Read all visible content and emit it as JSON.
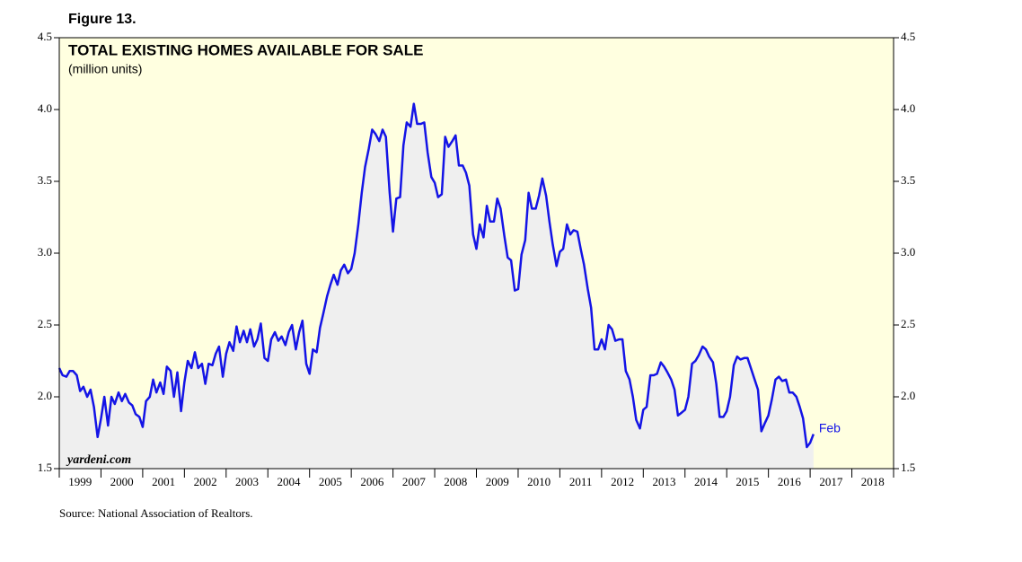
{
  "chart_data": {
    "type": "line",
    "figure_label": "Figure 13.",
    "title": "TOTAL EXISTING HOMES AVAILABLE FOR SALE",
    "subtitle": "(million units)",
    "watermark": "yardeni.com",
    "source": "Source: National Association of Realtors.",
    "annotation": "Feb",
    "categories": [
      "1999",
      "2000",
      "2001",
      "2002",
      "2003",
      "2004",
      "2005",
      "2006",
      "2007",
      "2008",
      "2009",
      "2010",
      "2011",
      "2012",
      "2013",
      "2014",
      "2015",
      "2016",
      "2017",
      "2018"
    ],
    "xlim": [
      1999,
      2019
    ],
    "xticks": [
      1999,
      2000,
      2001,
      2002,
      2003,
      2004,
      2005,
      2006,
      2007,
      2008,
      2009,
      2010,
      2011,
      2012,
      2013,
      2014,
      2015,
      2016,
      2017,
      2018,
      2019
    ],
    "ylim": [
      1.5,
      4.5
    ],
    "yticks": [
      1.5,
      {
        "value": 2,
        "label": "2.0"
      },
      2.5,
      {
        "value": 3,
        "label": "3.0"
      },
      3.5,
      {
        "value": 4,
        "label": "4.0"
      },
      4.5
    ],
    "background": "#ffffe0",
    "area_color": "#efefef",
    "x": [
      1999,
      1999.08,
      1999.17,
      1999.25,
      1999.33,
      1999.42,
      1999.5,
      1999.58,
      1999.67,
      1999.75,
      1999.83,
      1999.92,
      2000,
      2000.08,
      2000.17,
      2000.25,
      2000.33,
      2000.42,
      2000.5,
      2000.58,
      2000.67,
      2000.75,
      2000.83,
      2000.92,
      2001,
      2001.08,
      2001.17,
      2001.25,
      2001.33,
      2001.42,
      2001.5,
      2001.58,
      2001.67,
      2001.75,
      2001.83,
      2001.92,
      2002,
      2002.08,
      2002.17,
      2002.25,
      2002.33,
      2002.42,
      2002.5,
      2002.58,
      2002.67,
      2002.75,
      2002.83,
      2002.92,
      2003,
      2003.08,
      2003.17,
      2003.25,
      2003.33,
      2003.42,
      2003.5,
      2003.58,
      2003.67,
      2003.75,
      2003.83,
      2003.92,
      2004,
      2004.08,
      2004.17,
      2004.25,
      2004.33,
      2004.42,
      2004.5,
      2004.58,
      2004.67,
      2004.75,
      2004.83,
      2004.92,
      2005,
      2005.08,
      2005.17,
      2005.25,
      2005.33,
      2005.42,
      2005.5,
      2005.58,
      2005.67,
      2005.75,
      2005.83,
      2005.92,
      2006,
      2006.08,
      2006.17,
      2006.25,
      2006.33,
      2006.42,
      2006.5,
      2006.58,
      2006.67,
      2006.75,
      2006.83,
      2006.92,
      2007,
      2007.08,
      2007.17,
      2007.25,
      2007.33,
      2007.42,
      2007.5,
      2007.58,
      2007.67,
      2007.75,
      2007.83,
      2007.92,
      2008,
      2008.08,
      2008.17,
      2008.25,
      2008.33,
      2008.42,
      2008.5,
      2008.58,
      2008.67,
      2008.75,
      2008.83,
      2008.92,
      2009,
      2009.08,
      2009.17,
      2009.25,
      2009.33,
      2009.42,
      2009.5,
      2009.58,
      2009.67,
      2009.75,
      2009.83,
      2009.92,
      2010,
      2010.08,
      2010.17,
      2010.25,
      2010.33,
      2010.42,
      2010.5,
      2010.58,
      2010.67,
      2010.75,
      2010.83,
      2010.92,
      2011,
      2011.08,
      2011.17,
      2011.25,
      2011.33,
      2011.42,
      2011.5,
      2011.58,
      2011.67,
      2011.75,
      2011.83,
      2011.92,
      2012,
      2012.08,
      2012.17,
      2012.25,
      2012.33,
      2012.42,
      2012.5,
      2012.58,
      2012.67,
      2012.75,
      2012.83,
      2012.92,
      2013,
      2013.08,
      2013.17,
      2013.25,
      2013.33,
      2013.42,
      2013.5,
      2013.58,
      2013.67,
      2013.75,
      2013.83,
      2013.92,
      2014,
      2014.08,
      2014.17,
      2014.25,
      2014.33,
      2014.42,
      2014.5,
      2014.58,
      2014.67,
      2014.75,
      2014.83,
      2014.92,
      2015,
      2015.08,
      2015.17,
      2015.25,
      2015.33,
      2015.42,
      2015.5,
      2015.58,
      2015.67,
      2015.75,
      2015.83,
      2015.92,
      2016,
      2016.08,
      2016.17,
      2016.25,
      2016.33,
      2016.42,
      2016.5,
      2016.58,
      2016.67,
      2016.75,
      2016.83,
      2016.92,
      2017,
      2017.08
    ],
    "series": [
      {
        "name": "Total existing homes available for sale",
        "color": "#1414e6",
        "values": [
          2.2,
          2.15,
          2.14,
          2.18,
          2.18,
          2.15,
          2.04,
          2.07,
          2.0,
          2.05,
          1.93,
          1.72,
          1.85,
          2.0,
          1.8,
          2.0,
          1.95,
          2.03,
          1.97,
          2.02,
          1.96,
          1.94,
          1.88,
          1.86,
          1.79,
          1.97,
          2.0,
          2.12,
          2.03,
          2.1,
          2.02,
          2.21,
          2.18,
          2.0,
          2.17,
          1.9,
          2.1,
          2.25,
          2.2,
          2.31,
          2.2,
          2.23,
          2.09,
          2.23,
          2.22,
          2.3,
          2.35,
          2.14,
          2.3,
          2.38,
          2.32,
          2.49,
          2.38,
          2.46,
          2.38,
          2.47,
          2.35,
          2.4,
          2.51,
          2.27,
          2.25,
          2.4,
          2.45,
          2.39,
          2.42,
          2.36,
          2.45,
          2.5,
          2.33,
          2.45,
          2.53,
          2.23,
          2.16,
          2.33,
          2.31,
          2.48,
          2.58,
          2.7,
          2.78,
          2.85,
          2.78,
          2.88,
          2.92,
          2.86,
          2.89,
          3.0,
          3.2,
          3.42,
          3.6,
          3.73,
          3.86,
          3.83,
          3.78,
          3.86,
          3.81,
          3.42,
          3.15,
          3.38,
          3.39,
          3.75,
          3.91,
          3.88,
          4.04,
          3.9,
          3.9,
          3.91,
          3.7,
          3.53,
          3.49,
          3.39,
          3.41,
          3.81,
          3.74,
          3.78,
          3.82,
          3.61,
          3.61,
          3.56,
          3.47,
          3.13,
          3.03,
          3.2,
          3.11,
          3.33,
          3.22,
          3.22,
          3.38,
          3.31,
          3.12,
          2.97,
          2.95,
          2.74,
          2.75,
          2.99,
          3.09,
          3.42,
          3.31,
          3.31,
          3.4,
          3.52,
          3.4,
          3.22,
          3.06,
          2.91,
          3.01,
          3.03,
          3.2,
          3.13,
          3.16,
          3.15,
          3.03,
          2.92,
          2.75,
          2.62,
          2.33,
          2.33,
          2.4,
          2.33,
          2.5,
          2.47,
          2.39,
          2.4,
          2.4,
          2.18,
          2.12,
          2.0,
          1.84,
          1.78,
          1.91,
          1.93,
          2.15,
          2.15,
          2.16,
          2.24,
          2.21,
          2.17,
          2.12,
          2.05,
          1.87,
          1.89,
          1.91,
          2.0,
          2.23,
          2.25,
          2.29,
          2.35,
          2.33,
          2.28,
          2.24,
          2.09,
          1.86,
          1.86,
          1.9,
          2.0,
          2.22,
          2.28,
          2.26,
          2.27,
          2.27,
          2.2,
          2.12,
          2.05,
          1.76,
          1.82,
          1.87,
          1.98,
          2.12,
          2.14,
          2.11,
          2.12,
          2.03,
          2.03,
          2.0,
          1.93,
          1.85,
          1.65,
          1.68,
          1.74
        ]
      }
    ]
  }
}
